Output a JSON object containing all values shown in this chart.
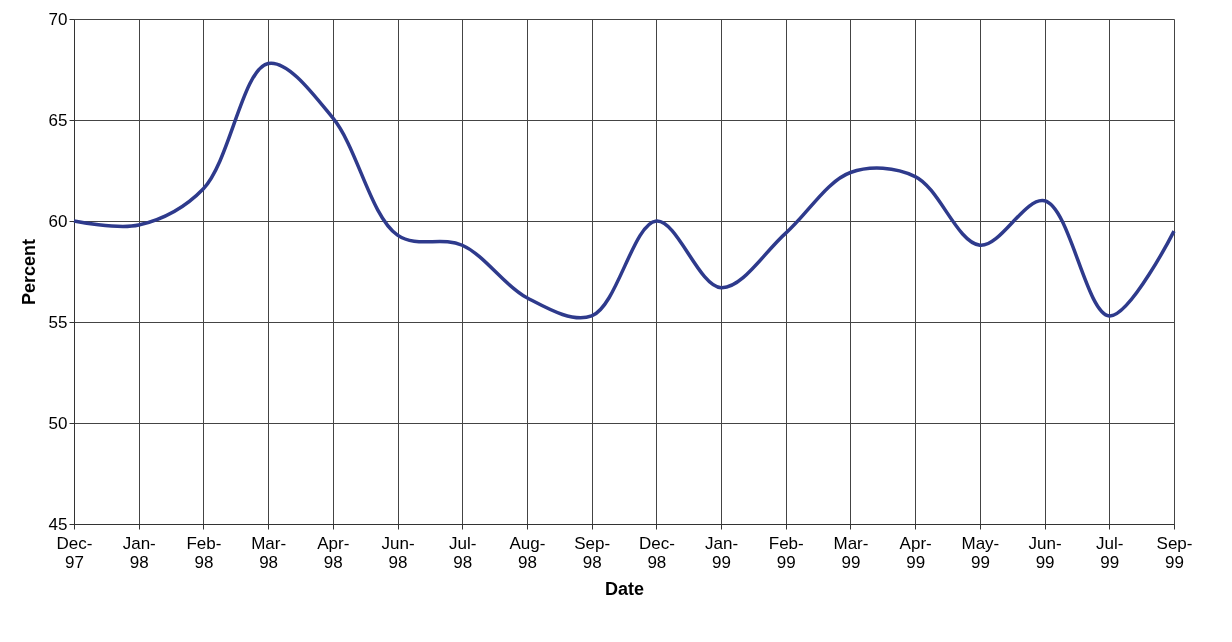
{
  "chart_data": {
    "type": "line",
    "xlabel": "Date",
    "ylabel": "Percent",
    "categories": [
      "Dec-97",
      "Jan-98",
      "Feb-98",
      "Mar-98",
      "Apr-98",
      "Jun-98",
      "Jul-98",
      "Aug-98",
      "Sep-98",
      "Dec-98",
      "Jan-99",
      "Feb-99",
      "Mar-99",
      "Apr-99",
      "May-99",
      "Jun-99",
      "Jul-99",
      "Sep-99"
    ],
    "series": [
      {
        "color": "#2e3a8c",
        "values": [
          60.0,
          59.8,
          61.6,
          67.8,
          65.1,
          59.3,
          58.8,
          56.2,
          55.3,
          60.0,
          56.7,
          59.4,
          62.4,
          62.2,
          58.8,
          61.0,
          55.3,
          59.5
        ]
      }
    ],
    "ylim": [
      45,
      70
    ],
    "yticks": [
      45,
      50,
      55,
      60,
      65,
      70
    ],
    "grid": true,
    "marker": "none",
    "line_style": "solid"
  }
}
